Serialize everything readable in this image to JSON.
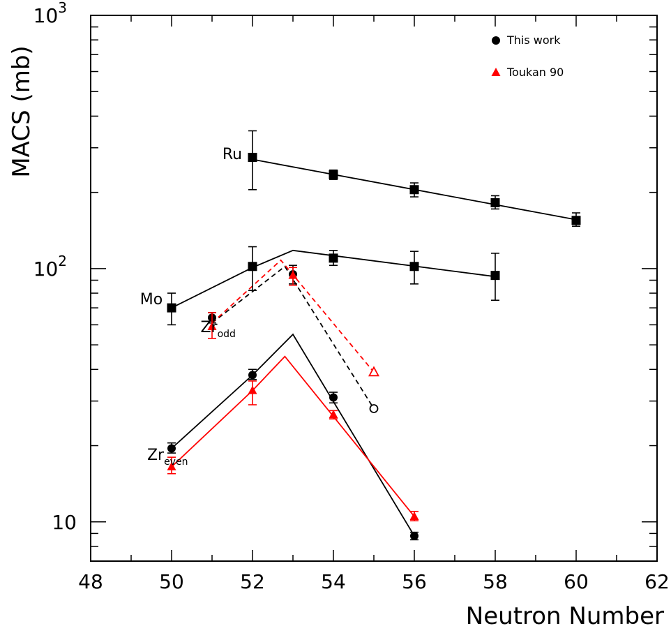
{
  "chart_data": {
    "type": "scatter",
    "title": "",
    "xlabel": "Neutron Number",
    "ylabel": "MACS (mb)",
    "xlim": [
      48,
      62
    ],
    "ylim": [
      7,
      1000
    ],
    "yscale": "log",
    "x_ticks": [
      48,
      50,
      52,
      54,
      56,
      58,
      60,
      62
    ],
    "x_tick_labels": [
      "48",
      "50",
      "52",
      "54",
      "56",
      "58",
      "60",
      "62"
    ],
    "y_major_ticks": [
      {
        "value": 10,
        "base": "10",
        "exp": ""
      },
      {
        "value": 100,
        "base": "10",
        "exp": "2"
      },
      {
        "value": 1000,
        "base": "10",
        "exp": "3"
      }
    ],
    "grid": false,
    "legend": {
      "position": "top-right",
      "entries": [
        {
          "label": "This work",
          "marker": "circle",
          "color": "#000000"
        },
        {
          "label": "Toukan 90",
          "marker": "triangle",
          "color": "#ff0000"
        }
      ]
    },
    "curve_labels": [
      {
        "text": "Ru",
        "sub": "",
        "x": 51.5,
        "y": 285
      },
      {
        "text": "Mo",
        "sub": "",
        "x": 49.5,
        "y": 76
      },
      {
        "text": "Zr",
        "sub": "odd",
        "x": 51.15,
        "y": 59
      },
      {
        "text": "Zr",
        "sub": "even",
        "x": 49.9,
        "y": 18.5
      }
    ],
    "series": [
      {
        "id": "ru",
        "name": "Ru",
        "marker": "square",
        "color": "#000000",
        "points": [
          {
            "x": 52,
            "y": 275,
            "lo": 205,
            "hi": 350
          },
          {
            "x": 54,
            "y": 235,
            "lo": 225,
            "hi": 245
          },
          {
            "x": 56,
            "y": 205,
            "lo": 192,
            "hi": 218
          },
          {
            "x": 58,
            "y": 182,
            "lo": 172,
            "hi": 194
          },
          {
            "x": 60,
            "y": 155,
            "lo": 147,
            "hi": 166
          }
        ]
      },
      {
        "id": "mo",
        "name": "Mo",
        "marker": "square",
        "color": "#000000",
        "points": [
          {
            "x": 50,
            "y": 70,
            "lo": 60,
            "hi": 80
          },
          {
            "x": 52,
            "y": 102,
            "lo": 82,
            "hi": 122
          },
          {
            "x": 54,
            "y": 110,
            "lo": 103,
            "hi": 118
          },
          {
            "x": 56,
            "y": 102,
            "lo": 87,
            "hi": 117
          },
          {
            "x": 58,
            "y": 94,
            "lo": 75,
            "hi": 115
          }
        ]
      },
      {
        "id": "zr-odd-this-work",
        "name": "",
        "marker": "circle",
        "color": "#000000",
        "points": [
          {
            "x": 51,
            "y": 64,
            "lo": 61,
            "hi": 67
          },
          {
            "x": 53,
            "y": 95,
            "lo": 87,
            "hi": 103
          }
        ]
      },
      {
        "id": "zr-odd-toukan",
        "name": "",
        "marker": "triangle",
        "color": "#ff0000",
        "points": [
          {
            "x": 51,
            "y": 59,
            "lo": 53,
            "hi": 67
          },
          {
            "x": 53,
            "y": 94,
            "lo": 86,
            "hi": 101
          }
        ]
      },
      {
        "id": "zr-odd-this-work-calc",
        "name": "",
        "marker": "open-circle",
        "color": "#000000",
        "points": [
          {
            "x": 55,
            "y": 28
          }
        ]
      },
      {
        "id": "zr-odd-toukan-calc",
        "name": "",
        "marker": "open-triangle",
        "color": "#ff0000",
        "points": [
          {
            "x": 55,
            "y": 39
          }
        ]
      },
      {
        "id": "zr-even-this-work",
        "name": "",
        "marker": "circle",
        "color": "#000000",
        "points": [
          {
            "x": 50,
            "y": 19.5,
            "lo": 18.7,
            "hi": 20.5
          },
          {
            "x": 52,
            "y": 38,
            "lo": 36.5,
            "hi": 40
          },
          {
            "x": 54,
            "y": 31,
            "lo": 29.5,
            "hi": 32.5
          },
          {
            "x": 56,
            "y": 8.8,
            "lo": 8.5,
            "hi": 9.1
          }
        ]
      },
      {
        "id": "zr-even-toukan",
        "name": "",
        "marker": "triangle",
        "color": "#ff0000",
        "points": [
          {
            "x": 50,
            "y": 16.5,
            "lo": 15.5,
            "hi": 18
          },
          {
            "x": 52,
            "y": 33,
            "lo": 29,
            "hi": 36
          },
          {
            "x": 54,
            "y": 26.5,
            "lo": 25.5,
            "hi": 27.5
          },
          {
            "x": 56,
            "y": 10.5,
            "lo": 10.1,
            "hi": 11
          }
        ]
      }
    ],
    "lines": [
      {
        "id": "ru-fit",
        "color": "#000000",
        "dashed": false,
        "points": [
          [
            52,
            270
          ],
          [
            60,
            156
          ]
        ]
      },
      {
        "id": "mo-fit",
        "color": "#000000",
        "dashed": false,
        "points": [
          [
            50,
            70
          ],
          [
            52,
            101
          ],
          [
            53,
            118
          ],
          [
            58,
            93
          ]
        ]
      },
      {
        "id": "zr-odd-this-work-fit",
        "color": "#000000",
        "dashed": true,
        "points": [
          [
            51,
            61
          ],
          [
            52.8,
            102
          ],
          [
            55,
            28
          ]
        ]
      },
      {
        "id": "zr-odd-toukan-fit",
        "color": "#ff0000",
        "dashed": true,
        "points": [
          [
            51,
            61
          ],
          [
            52.7,
            108
          ],
          [
            55,
            39
          ]
        ]
      },
      {
        "id": "zr-even-this-work-fit",
        "color": "#000000",
        "dashed": false,
        "points": [
          [
            50,
            19.5
          ],
          [
            52,
            38
          ],
          [
            53,
            55
          ],
          [
            56,
            8.8
          ]
        ]
      },
      {
        "id": "zr-even-toukan-fit",
        "color": "#ff0000",
        "dashed": false,
        "points": [
          [
            50,
            16.5
          ],
          [
            52,
            33
          ],
          [
            52.8,
            45
          ],
          [
            56,
            10.5
          ]
        ]
      }
    ]
  }
}
